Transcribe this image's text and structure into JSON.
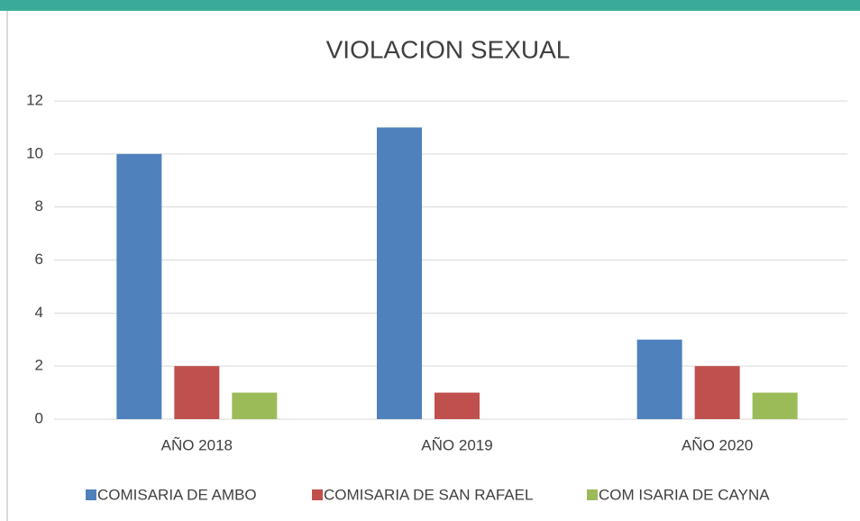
{
  "chart_data": {
    "type": "bar",
    "title": "VIOLACION SEXUAL",
    "categories": [
      "AÑO 2018",
      "AÑO 2019",
      "AÑO 2020"
    ],
    "series": [
      {
        "name": "COMISARIA DE AMBO",
        "color": "#4f81bd",
        "values": [
          10,
          11,
          3
        ]
      },
      {
        "name": "COMISARIA DE SAN RAFAEL",
        "color": "#c0504d",
        "values": [
          2,
          1,
          2
        ]
      },
      {
        "name": "COM ISARIA DE CAYNA",
        "color": "#9bbb59",
        "values": [
          1,
          0,
          1
        ]
      }
    ],
    "ylim": [
      0,
      12
    ],
    "yticks": [
      0,
      2,
      4,
      6,
      8,
      10,
      12
    ],
    "grid": true,
    "legend": "bottom"
  }
}
